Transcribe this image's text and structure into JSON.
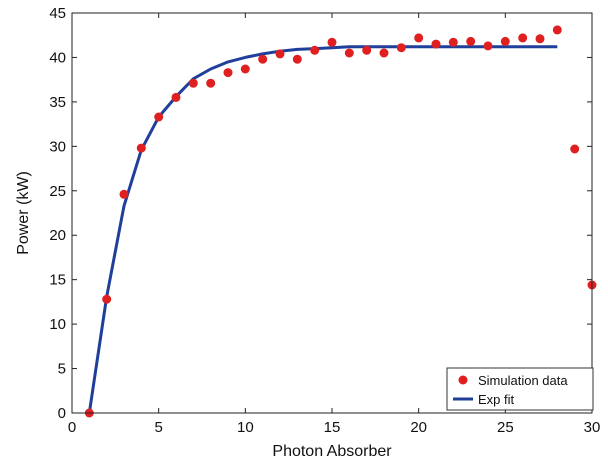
{
  "chart_data": {
    "type": "scatter",
    "xlabel": "Photon Absorber",
    "ylabel": "Power (kW)",
    "xlim": [
      0,
      30
    ],
    "ylim": [
      0,
      45
    ],
    "xticks": [
      0,
      5,
      10,
      15,
      20,
      25,
      30
    ],
    "yticks": [
      0,
      5,
      10,
      15,
      20,
      25,
      30,
      35,
      40,
      45
    ],
    "grid": false,
    "legend_position": "bottom-right",
    "series": [
      {
        "name": "Simulation data",
        "kind": "scatter",
        "color": "#e02020",
        "x": [
          1,
          2,
          3,
          4,
          5,
          6,
          7,
          8,
          9,
          10,
          11,
          12,
          13,
          14,
          15,
          16,
          17,
          18,
          19,
          20,
          21,
          22,
          23,
          24,
          25,
          26,
          27,
          28,
          29,
          30
        ],
        "y": [
          0,
          12.8,
          24.6,
          29.8,
          33.3,
          35.5,
          37.1,
          37.1,
          38.3,
          38.7,
          39.8,
          40.4,
          39.8,
          40.8,
          41.7,
          40.5,
          40.8,
          40.5,
          41.1,
          42.2,
          41.5,
          41.7,
          41.8,
          41.3,
          41.8,
          42.2,
          42.1,
          43.1,
          29.7,
          14.4
        ]
      },
      {
        "name": "Exp fit",
        "kind": "line",
        "color": "#1f3f9a",
        "x": [
          1,
          2,
          3,
          4,
          5,
          6,
          7,
          8,
          9,
          10,
          11,
          12,
          13,
          14,
          15,
          16,
          17,
          18,
          19,
          20,
          21,
          22,
          23,
          24,
          25,
          26,
          27,
          28
        ],
        "y": [
          0,
          13.1,
          23.3,
          29.6,
          33.3,
          35.6,
          37.6,
          38.7,
          39.5,
          40.0,
          40.4,
          40.7,
          40.9,
          41.0,
          41.1,
          41.2,
          41.2,
          41.2,
          41.2,
          41.2,
          41.2,
          41.2,
          41.2,
          41.2,
          41.2,
          41.2,
          41.2,
          41.2
        ]
      }
    ]
  }
}
